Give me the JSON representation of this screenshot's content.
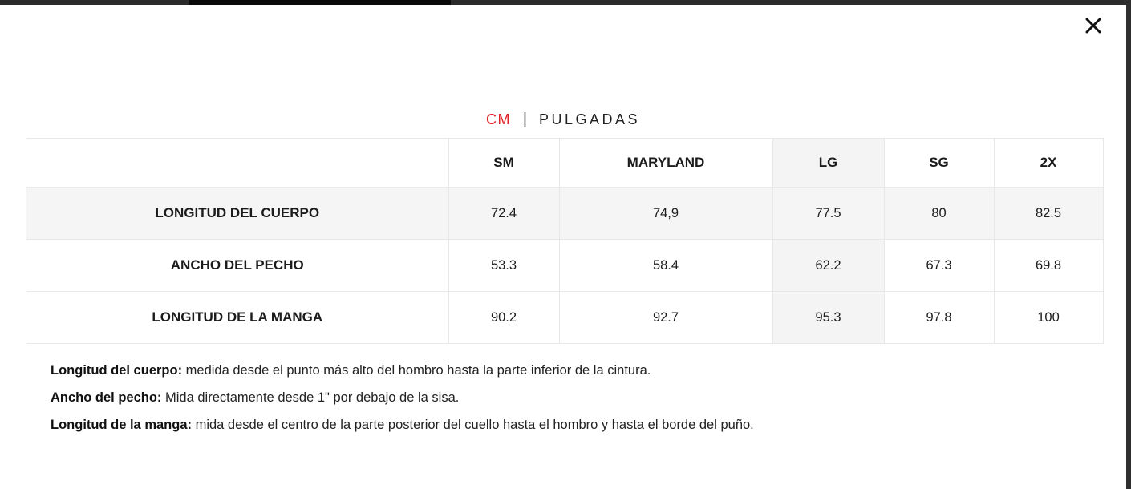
{
  "icons": {
    "close": "close-x"
  },
  "unit_toggle": {
    "cm_label": "CM",
    "separator": "|",
    "inches_label": "PULGADAS",
    "active_unit": "CM"
  },
  "table": {
    "columns": [
      "SM",
      "MARYLAND",
      "LG",
      "SG",
      "2X"
    ],
    "highlighted_column": "LG",
    "rows": [
      {
        "label": "LONGITUD DEL CUERPO",
        "values": [
          "72.4",
          "74,9",
          "77.5",
          "80",
          "82.5"
        ],
        "shaded": true
      },
      {
        "label": "ANCHO DEL PECHO",
        "values": [
          "53.3",
          "58.4",
          "62.2",
          "67.3",
          "69.8"
        ],
        "shaded": false
      },
      {
        "label": "LONGITUD DE LA MANGA",
        "values": [
          "90.2",
          "92.7",
          "95.3",
          "97.8",
          "100"
        ],
        "shaded": false
      }
    ]
  },
  "descriptions": [
    {
      "term": "Longitud del cuerpo:",
      "text": "medida desde el punto más alto del hombro hasta la parte inferior de la cintura."
    },
    {
      "term": "Ancho del pecho:",
      "text": "Mida directamente desde 1\" por debajo de la sisa."
    },
    {
      "term": "Longitud de la manga:",
      "text": "mida desde el centro de la parte posterior del cuello hasta el hombro y hasta el borde del puño."
    }
  ],
  "colors": {
    "accent_red": "#e21f26",
    "shaded_bg": "#f5f5f5",
    "border_color": "#e8e8e8",
    "text_color": "#1c1c1c",
    "bar_color": "#2b2b2b"
  }
}
